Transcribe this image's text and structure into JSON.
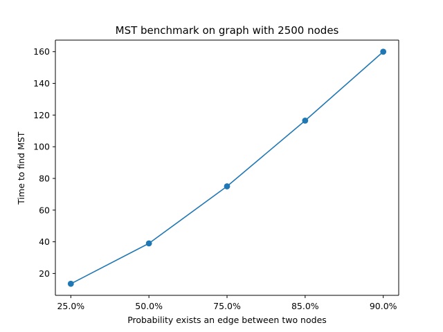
{
  "chart_data": {
    "type": "line",
    "title": "MST benchmark on graph with 2500 nodes",
    "xlabel": "Probability exists an edge between two nodes",
    "ylabel": "Time to find MST",
    "categories": [
      "25.0%",
      "50.0%",
      "75.0%",
      "85.0%",
      "90.0%"
    ],
    "series": [
      {
        "values": [
          13.5,
          39,
          75,
          116.5,
          160
        ],
        "color": "#1f77b4",
        "marker": "circle"
      }
    ],
    "ylim": [
      6.2,
      167.3
    ],
    "yticks": [
      20,
      40,
      60,
      80,
      100,
      120,
      140,
      160
    ],
    "grid": false,
    "legend": "none"
  }
}
